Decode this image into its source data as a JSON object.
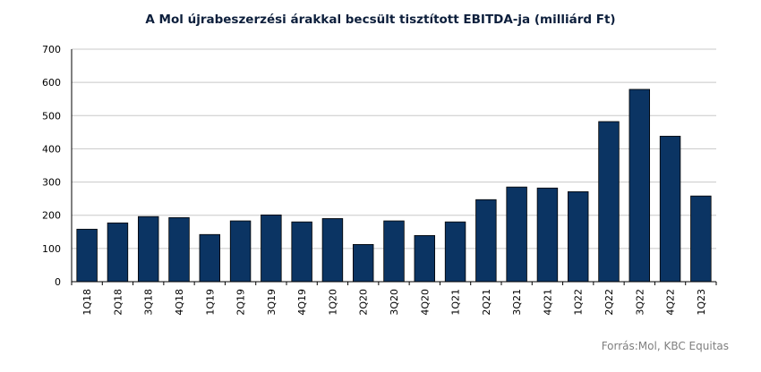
{
  "source": "Forrás:Mol, KBC Equitas",
  "chart_data": {
    "type": "bar",
    "title": "A Mol újrabeszerzési árakkal becsült tisztított EBITDA-ja (milliárd Ft)",
    "xlabel": "",
    "ylabel": "",
    "categories": [
      "1Q18",
      "2Q18",
      "3Q18",
      "4Q18",
      "1Q19",
      "2Q19",
      "3Q19",
      "4Q19",
      "1Q20",
      "2Q20",
      "3Q20",
      "4Q20",
      "1Q21",
      "2Q21",
      "3Q21",
      "4Q21",
      "1Q22",
      "2Q22",
      "3Q22",
      "4Q22",
      "1Q23"
    ],
    "values": [
      158,
      177,
      196,
      193,
      142,
      183,
      201,
      180,
      190,
      112,
      183,
      139,
      180,
      247,
      285,
      282,
      271,
      482,
      579,
      438,
      258
    ],
    "ylim": [
      0,
      700
    ],
    "yticks": [
      0,
      100,
      200,
      300,
      400,
      500,
      600,
      700
    ],
    "grid": true,
    "legend": "none",
    "bar_color": "#0b3463",
    "grid_color": "#c8c8c8"
  }
}
